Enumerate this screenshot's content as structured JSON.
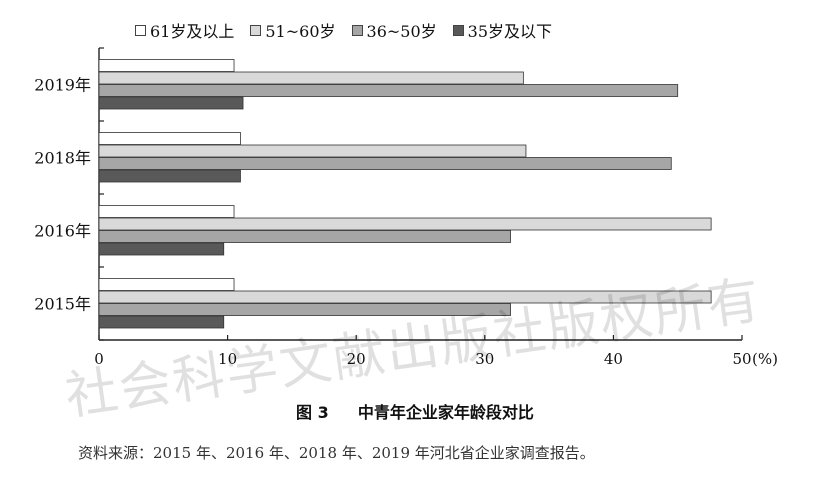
{
  "legend": [
    {
      "label": "61岁及以上",
      "color": "#ffffff"
    },
    {
      "label": "51~60岁",
      "color": "#d9d9d9"
    },
    {
      "label": "36~50岁",
      "color": "#a6a6a6"
    },
    {
      "label": "35岁及以下",
      "color": "#595959"
    }
  ],
  "caption": {
    "figure_no": "图 3",
    "title": "中青年企业家年龄段对比"
  },
  "source": "资料来源：2015 年、2016 年、2018 年、2019 年河北省企业家调查报告。",
  "watermark": "社会科学文献出版社版权所有",
  "chart_data": {
    "type": "bar",
    "orientation": "horizontal",
    "categories": [
      "2019年",
      "2018年",
      "2016年",
      "2015年"
    ],
    "series": [
      {
        "name": "61岁及以上",
        "color": "#ffffff",
        "values": [
          10.5,
          11.0,
          10.5,
          10.5
        ]
      },
      {
        "name": "51~60岁",
        "color": "#d9d9d9",
        "values": [
          33.0,
          33.2,
          47.6,
          47.6
        ]
      },
      {
        "name": "36~50岁",
        "color": "#a6a6a6",
        "values": [
          45.0,
          44.5,
          32.0,
          32.0
        ]
      },
      {
        "name": "35岁及以下",
        "color": "#595959",
        "values": [
          11.2,
          11.0,
          9.7,
          9.7
        ]
      }
    ],
    "xlim": [
      0,
      50
    ],
    "xticks": [
      "0",
      "10",
      "20",
      "30",
      "40",
      "50"
    ],
    "xunit": "(%)",
    "grid": false,
    "legend_position": "top"
  }
}
